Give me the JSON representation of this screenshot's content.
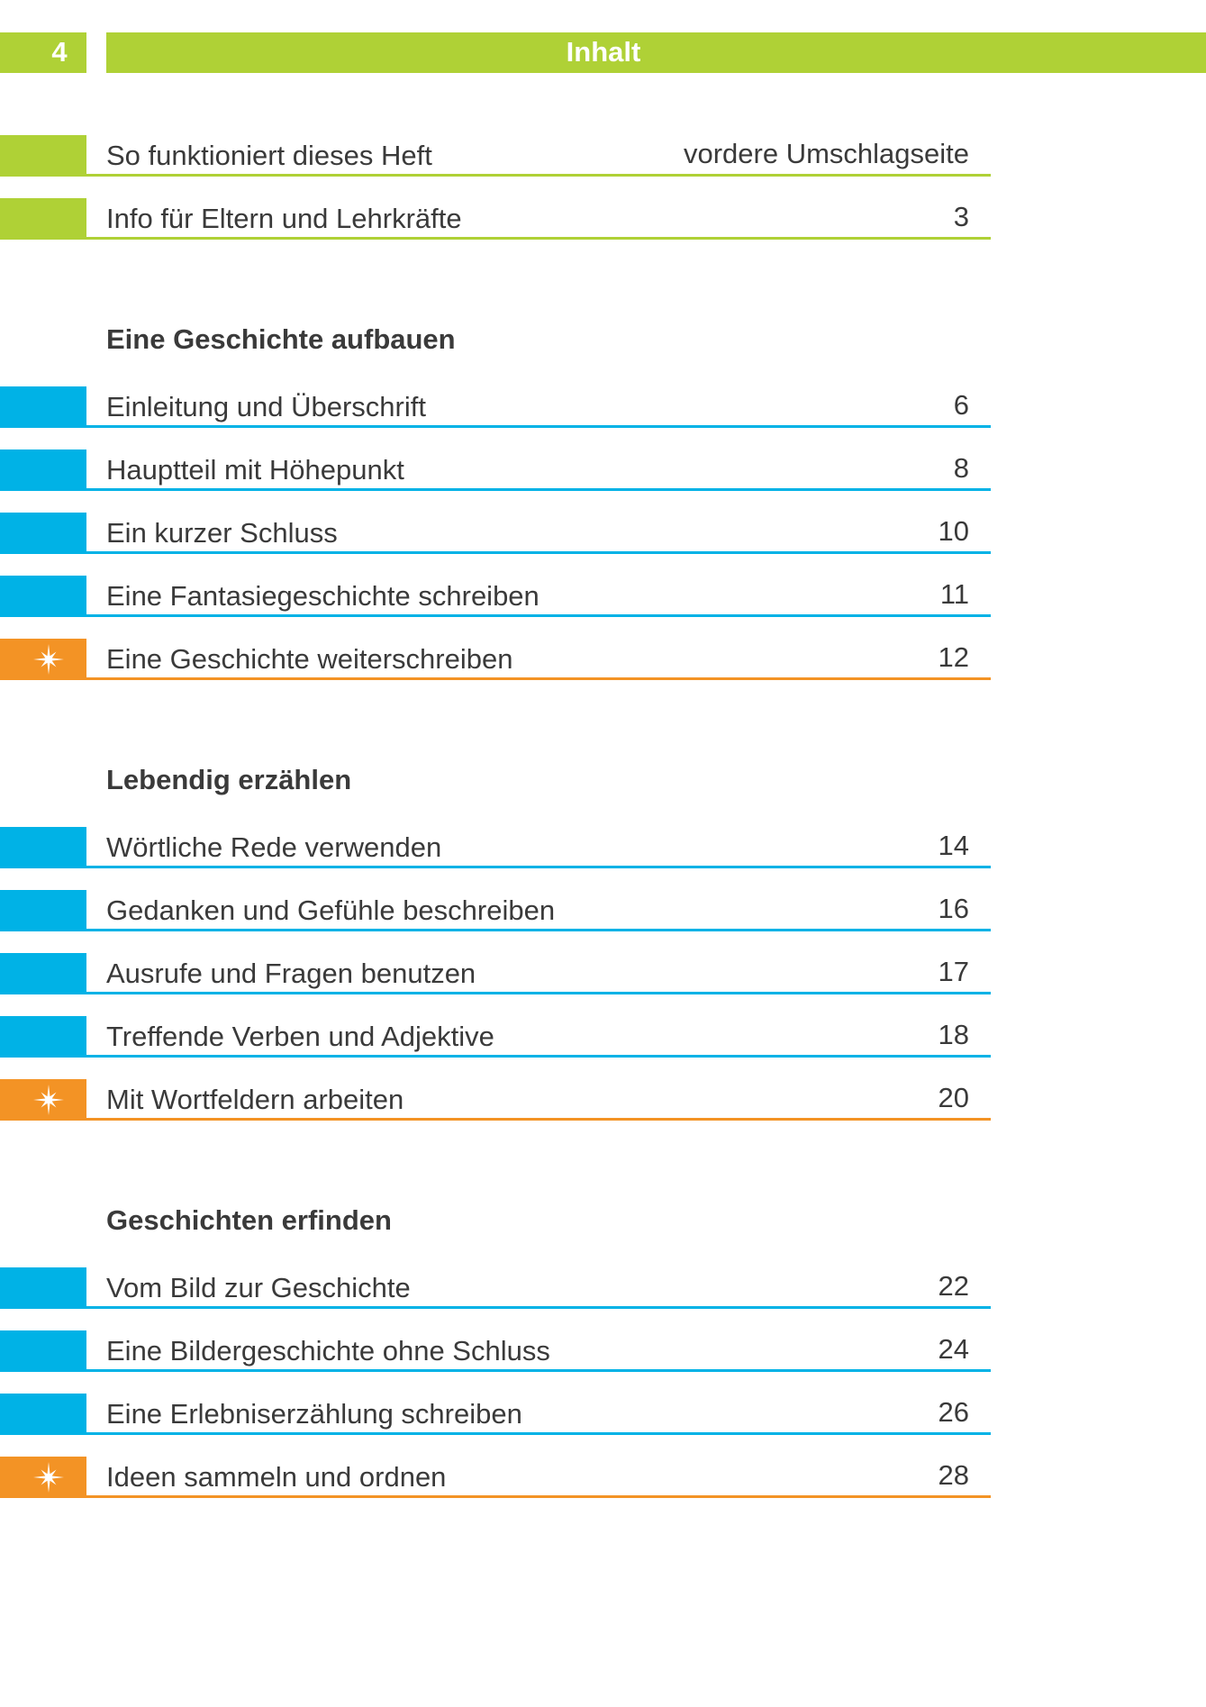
{
  "header": {
    "page_number": "4",
    "title": "Inhalt"
  },
  "intro": [
    {
      "label": "So funktioniert dieses Heft",
      "page": "vordere Umschlagseite",
      "color": "#afd136"
    },
    {
      "label": "Info für Eltern und Lehrkräfte",
      "page": "3",
      "color": "#afd136"
    }
  ],
  "sections": [
    {
      "heading": "Eine Geschichte aufbauen",
      "items": [
        {
          "label": "Einleitung und Überschrift",
          "page": "6",
          "color": "#00b2e6"
        },
        {
          "label": "Hauptteil mit Höhepunkt",
          "page": "8",
          "color": "#00b2e6"
        },
        {
          "label": "Ein kurzer Schluss",
          "page": "10",
          "color": "#00b2e6"
        },
        {
          "label": "Eine Fantasiegeschichte schreiben",
          "page": "11",
          "color": "#00b2e6"
        },
        {
          "label": "Eine Geschichte weiterschreiben",
          "page": "12",
          "color": "#f39325",
          "star": true
        }
      ]
    },
    {
      "heading": "Lebendig erzählen",
      "items": [
        {
          "label": "Wörtliche Rede verwenden",
          "page": "14",
          "color": "#00b2e6"
        },
        {
          "label": "Gedanken und Gefühle beschreiben",
          "page": "16",
          "color": "#00b2e6"
        },
        {
          "label": "Ausrufe und Fragen benutzen",
          "page": "17",
          "color": "#00b2e6"
        },
        {
          "label": "Treffende Verben und Adjektive",
          "page": "18",
          "color": "#00b2e6"
        },
        {
          "label": "Mit Wortfeldern arbeiten",
          "page": "20",
          "color": "#f39325",
          "star": true
        }
      ]
    },
    {
      "heading": "Geschichten erfinden",
      "items": [
        {
          "label": "Vom Bild zur Geschichte",
          "page": "22",
          "color": "#00b2e6"
        },
        {
          "label": "Eine Bildergeschichte ohne Schluss",
          "page": "24",
          "color": "#00b2e6"
        },
        {
          "label": "Eine Erlebniserzählung schreiben",
          "page": "26",
          "color": "#00b2e6"
        },
        {
          "label": "Ideen sammeln und ordnen",
          "page": "28",
          "color": "#f39325",
          "star": true
        }
      ]
    }
  ]
}
